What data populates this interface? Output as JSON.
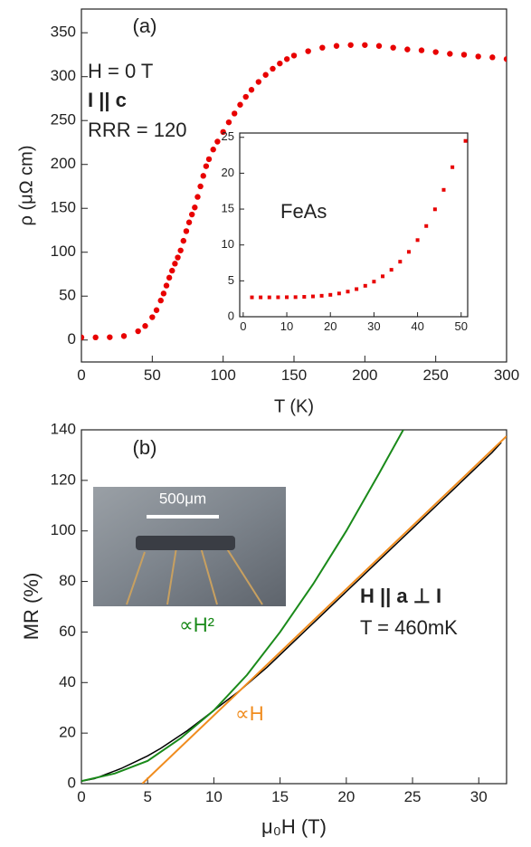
{
  "chart_data": [
    {
      "type": "scatter",
      "xlabel": "T (K)",
      "ylabel": "ρ (μΩ cm)",
      "xlim": [
        0,
        300
      ],
      "ylim": [
        -25,
        377
      ],
      "xticks": [
        0,
        50,
        100,
        150,
        200,
        250,
        300
      ],
      "yticks": [
        0,
        50,
        100,
        150,
        200,
        250,
        300,
        350
      ],
      "annotations": [
        "(a)",
        "H = 0 T",
        "I || c",
        "RRR = 120"
      ],
      "series": [
        {
          "color": "#e80000",
          "x": [
            0,
            10,
            20,
            30,
            40,
            45,
            50,
            53,
            56,
            58,
            60,
            62,
            64,
            66,
            68,
            70,
            72,
            74,
            76,
            78,
            80,
            82,
            84,
            86,
            88,
            90,
            93,
            96,
            100,
            104,
            108,
            112,
            116,
            120,
            125,
            130,
            135,
            140,
            145,
            150,
            160,
            170,
            180,
            190,
            200,
            210,
            220,
            230,
            240,
            250,
            260,
            270,
            280,
            290,
            300
          ],
          "values": [
            3,
            3,
            3.2,
            4.5,
            10,
            16,
            26,
            34,
            45,
            53,
            62,
            71,
            79,
            87,
            94,
            102,
            113,
            124,
            134,
            143,
            151,
            163,
            175,
            187,
            198,
            206,
            217,
            226,
            237,
            248,
            258,
            268,
            277,
            285,
            294,
            302,
            309,
            315,
            320,
            324,
            329,
            333,
            335,
            336,
            336,
            335,
            333,
            331,
            330,
            328,
            326,
            325,
            323,
            322,
            320
          ]
        }
      ]
    },
    {
      "type": "scatter",
      "xlim": [
        -0.8,
        51.5
      ],
      "ylim": [
        0,
        25.6
      ],
      "xticks": [
        0,
        10,
        20,
        30,
        40,
        50
      ],
      "yticks": [
        0,
        5,
        10,
        15,
        20,
        25
      ],
      "annotations": [
        "FeAs"
      ],
      "series": [
        {
          "color": "#e80000",
          "x": [
            2,
            4,
            6,
            8,
            10,
            12,
            14,
            16,
            18,
            20,
            22,
            24,
            26,
            28,
            30,
            32,
            34,
            36,
            38,
            40,
            42,
            44,
            46,
            48,
            51
          ],
          "values": [
            2.7,
            2.7,
            2.7,
            2.71,
            2.72,
            2.73,
            2.77,
            2.83,
            2.92,
            3.05,
            3.24,
            3.5,
            3.85,
            4.31,
            4.89,
            5.63,
            6.54,
            7.67,
            9.04,
            10.68,
            12.64,
            14.97,
            17.68,
            20.84,
            24.5
          ]
        }
      ]
    },
    {
      "type": "line",
      "xlabel": "μ₀H (T)",
      "ylabel": "MR (%)",
      "xlim": [
        0,
        32.1
      ],
      "ylim": [
        0,
        140
      ],
      "xticks": [
        0,
        5,
        10,
        15,
        20,
        25,
        30
      ],
      "yticks": [
        0,
        20,
        40,
        60,
        80,
        100,
        120,
        140
      ],
      "annotations": [
        "(b)",
        "∝H²",
        "∝H",
        "H || a ⊥ I",
        "T = 460mK",
        "500μm"
      ],
      "series": [
        {
          "color": "#000000",
          "x": [
            0,
            1,
            2,
            3,
            4,
            5,
            6,
            7,
            8,
            9,
            10,
            11,
            12,
            13,
            14,
            15,
            16,
            17,
            18,
            19,
            20,
            21,
            22,
            23,
            24,
            25,
            26,
            27,
            28,
            29,
            30,
            31,
            31.7
          ],
          "values": [
            1,
            2,
            4,
            6,
            8.5,
            11,
            14,
            17.5,
            21,
            25,
            29,
            33,
            37,
            41.5,
            46,
            51,
            56,
            61,
            66,
            71,
            76,
            81,
            86,
            91,
            96,
            101,
            106,
            111,
            116,
            121,
            126,
            131,
            135
          ]
        },
        {
          "color": "#1a8a1a",
          "x": [
            0,
            2.5,
            5,
            7.5,
            10,
            12.5,
            15,
            17.5,
            20,
            22.5,
            24.3
          ],
          "values": [
            1,
            4,
            9,
            18,
            29,
            43,
            60,
            79,
            100,
            123,
            140
          ]
        },
        {
          "color": "#f08c1e",
          "x": [
            4.6,
            32.1
          ],
          "values": [
            0,
            137.5
          ]
        }
      ]
    }
  ]
}
